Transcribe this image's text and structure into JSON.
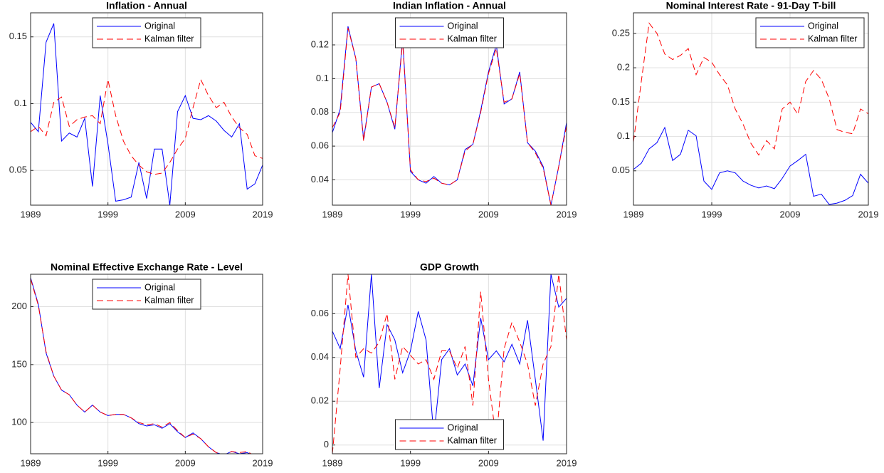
{
  "chart_data": [
    {
      "type": "line",
      "title": "Inflation - Annual",
      "x": [
        1989,
        1990,
        1991,
        1992,
        1993,
        1994,
        1995,
        1996,
        1997,
        1998,
        1999,
        2000,
        2001,
        2002,
        2003,
        2004,
        2005,
        2006,
        2007,
        2008,
        2009,
        2010,
        2011,
        2012,
        2013,
        2014,
        2015,
        2016,
        2017,
        2018,
        2019
      ],
      "series": [
        {
          "name": "Original",
          "color": "#0000ff",
          "linestyle": "solid",
          "values": [
            0.086,
            0.079,
            0.146,
            0.16,
            0.072,
            0.078,
            0.075,
            0.089,
            0.038,
            0.106,
            0.07,
            0.027,
            0.028,
            0.03,
            0.056,
            0.029,
            0.066,
            0.066,
            0.024,
            0.094,
            0.106,
            0.089,
            0.088,
            0.091,
            0.087,
            0.08,
            0.075,
            0.085,
            0.036,
            0.04,
            0.054
          ]
        },
        {
          "name": "Kalman filter",
          "color": "#ff0000",
          "linestyle": "dashed",
          "values": [
            0.079,
            0.083,
            0.076,
            0.101,
            0.105,
            0.083,
            0.088,
            0.09,
            0.091,
            0.085,
            0.118,
            0.091,
            0.072,
            0.061,
            0.054,
            0.049,
            0.047,
            0.048,
            0.056,
            0.066,
            0.074,
            0.097,
            0.118,
            0.106,
            0.097,
            0.101,
            0.09,
            0.082,
            0.077,
            0.061,
            0.059
          ]
        }
      ],
      "xlim": [
        1989,
        2019
      ],
      "xticks": [
        1989,
        1999,
        2009,
        2019
      ],
      "ylim": [
        0.024,
        0.168
      ],
      "yticks": [
        0.05,
        0.1,
        0.15
      ],
      "grid": true,
      "legend": "upper center"
    },
    {
      "type": "line",
      "title": "Indian Inflation - Annual",
      "x": [
        1989,
        1990,
        1991,
        1992,
        1993,
        1994,
        1995,
        1996,
        1997,
        1998,
        1999,
        2000,
        2001,
        2002,
        2003,
        2004,
        2005,
        2006,
        2007,
        2008,
        2009,
        2010,
        2011,
        2012,
        2013,
        2014,
        2015,
        2016,
        2017,
        2018,
        2019
      ],
      "series": [
        {
          "name": "Original",
          "color": "#0000ff",
          "linestyle": "solid",
          "values": [
            0.068,
            0.082,
            0.131,
            0.112,
            0.064,
            0.095,
            0.097,
            0.086,
            0.07,
            0.124,
            0.045,
            0.04,
            0.038,
            0.042,
            0.038,
            0.037,
            0.04,
            0.058,
            0.061,
            0.081,
            0.104,
            0.12,
            0.085,
            0.088,
            0.104,
            0.062,
            0.057,
            0.048,
            0.025,
            0.048,
            0.074
          ]
        },
        {
          "name": "Kalman filter",
          "color": "#ff0000",
          "linestyle": "dashed",
          "values": [
            0.071,
            0.08,
            0.13,
            0.112,
            0.063,
            0.095,
            0.097,
            0.086,
            0.071,
            0.122,
            0.046,
            0.04,
            0.039,
            0.041,
            0.038,
            0.037,
            0.04,
            0.057,
            0.061,
            0.08,
            0.103,
            0.118,
            0.086,
            0.088,
            0.103,
            0.062,
            0.056,
            0.047,
            0.025,
            0.048,
            0.072
          ]
        }
      ],
      "xlim": [
        1989,
        2019
      ],
      "xticks": [
        1989,
        1999,
        2009,
        2019
      ],
      "ylim": [
        0.025,
        0.139
      ],
      "yticks": [
        0.04,
        0.06,
        0.08,
        0.1,
        0.12
      ],
      "grid": true,
      "legend": "upper center"
    },
    {
      "type": "line",
      "title": "Nominal Interest Rate - 91-Day T-bill",
      "x": [
        1989,
        1990,
        1991,
        1992,
        1993,
        1994,
        1995,
        1996,
        1997,
        1998,
        1999,
        2000,
        2001,
        2002,
        2003,
        2004,
        2005,
        2006,
        2007,
        2008,
        2009,
        2010,
        2011,
        2012,
        2013,
        2014,
        2015,
        2016,
        2017,
        2018,
        2019
      ],
      "series": [
        {
          "name": "Original",
          "color": "#0000ff",
          "linestyle": "solid",
          "values": [
            0.052,
            0.061,
            0.082,
            0.091,
            0.113,
            0.065,
            0.074,
            0.109,
            0.101,
            0.035,
            0.023,
            0.047,
            0.05,
            0.047,
            0.035,
            0.029,
            0.025,
            0.028,
            0.024,
            0.039,
            0.057,
            0.065,
            0.074,
            0.013,
            0.016,
            0.001,
            0.003,
            0.007,
            0.014,
            0.045,
            0.032
          ]
        },
        {
          "name": "Kalman filter",
          "color": "#ff0000",
          "linestyle": "dashed",
          "values": [
            0.092,
            0.18,
            0.265,
            0.25,
            0.22,
            0.212,
            0.218,
            0.228,
            0.19,
            0.215,
            0.208,
            0.19,
            0.175,
            0.14,
            0.118,
            0.09,
            0.073,
            0.094,
            0.082,
            0.14,
            0.15,
            0.132,
            0.18,
            0.196,
            0.183,
            0.155,
            0.11,
            0.106,
            0.104,
            0.14,
            0.133
          ]
        }
      ],
      "xlim": [
        1989,
        2019
      ],
      "xticks": [
        1989,
        1999,
        2009,
        2019
      ],
      "ylim": [
        0,
        0.28
      ],
      "yticks": [
        0.05,
        0.1,
        0.15,
        0.2,
        0.25
      ],
      "grid": true,
      "legend": "upper right"
    },
    {
      "type": "line",
      "title": "Nominal Effective Exchange Rate - Level",
      "x": [
        1989,
        1990,
        1991,
        1992,
        1993,
        1994,
        1995,
        1996,
        1997,
        1998,
        1999,
        2000,
        2001,
        2002,
        2003,
        2004,
        2005,
        2006,
        2007,
        2008,
        2009,
        2010,
        2011,
        2012,
        2013,
        2014,
        2015,
        2016,
        2017,
        2018,
        2019
      ],
      "series": [
        {
          "name": "Original",
          "color": "#0000ff",
          "linestyle": "solid",
          "values": [
            225,
            202,
            160,
            140,
            128,
            124,
            115,
            109,
            115,
            109,
            106,
            107,
            107,
            104,
            99,
            97,
            98,
            95,
            99,
            92,
            87,
            91,
            86,
            79,
            74,
            72,
            75,
            73,
            74,
            71,
            72
          ]
        },
        {
          "name": "Kalman filter",
          "color": "#ff0000",
          "linestyle": "dashed",
          "values": [
            224,
            201,
            161,
            140,
            128,
            124,
            115,
            109,
            115,
            109,
            106,
            107,
            107,
            104,
            100,
            98,
            99,
            96,
            100,
            93,
            87,
            90,
            86,
            79,
            74,
            72,
            75,
            74,
            75,
            71,
            72
          ]
        }
      ],
      "xlim": [
        1989,
        2019
      ],
      "xticks": [
        1989,
        1999,
        2009,
        2019
      ],
      "ylim": [
        73,
        228
      ],
      "yticks": [
        100,
        150,
        200
      ],
      "grid": true,
      "legend": "upper center"
    },
    {
      "type": "line",
      "title": "GDP Growth",
      "x": [
        1989,
        1990,
        1991,
        1992,
        1993,
        1994,
        1995,
        1996,
        1997,
        1998,
        1999,
        2000,
        2001,
        2002,
        2003,
        2004,
        2005,
        2006,
        2007,
        2008,
        2009,
        2010,
        2011,
        2012,
        2013,
        2014,
        2015,
        2016,
        2017,
        2018,
        2019
      ],
      "series": [
        {
          "name": "Original",
          "color": "#0000ff",
          "linestyle": "solid",
          "values": [
            0.052,
            0.044,
            0.064,
            0.043,
            0.031,
            0.078,
            0.026,
            0.055,
            0.048,
            0.033,
            0.043,
            0.061,
            0.048,
            0.004,
            0.039,
            0.044,
            0.032,
            0.037,
            0.027,
            0.058,
            0.039,
            0.043,
            0.038,
            0.046,
            0.037,
            0.057,
            0.03,
            0.002,
            0.078,
            0.063,
            0.067
          ]
        },
        {
          "name": "Kalman filter",
          "color": "#ff0000",
          "linestyle": "dashed",
          "values": [
            -0.004,
            0.035,
            0.078,
            0.04,
            0.044,
            0.042,
            0.047,
            0.06,
            0.03,
            0.045,
            0.041,
            0.037,
            0.039,
            0.03,
            0.043,
            0.043,
            0.035,
            0.045,
            0.018,
            0.07,
            0.03,
            0.002,
            0.044,
            0.056,
            0.047,
            0.037,
            0.018,
            0.037,
            0.045,
            0.078,
            0.048
          ]
        }
      ],
      "xlim": [
        1989,
        2019
      ],
      "xticks": [
        1989,
        1999,
        2009,
        2019
      ],
      "ylim": [
        -0.004,
        0.078
      ],
      "yticks": [
        0,
        0.02,
        0.04,
        0.06
      ],
      "grid": true,
      "legend": "lower center"
    }
  ]
}
